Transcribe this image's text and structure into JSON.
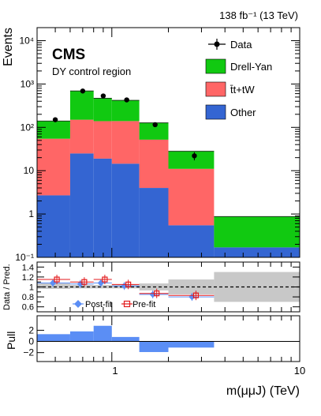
{
  "chart_data": {
    "type": "bar",
    "lumi_label": "138 fb⁻¹ (13 TeV)",
    "experiment": "CMS",
    "region": "DY control region",
    "xlabel": "m(μμJ) (TeV)",
    "x_scale": "log",
    "xlim": [
      0.4,
      10
    ],
    "x_ticks": [
      "1",
      "10"
    ],
    "bin_edges": [
      0.4,
      0.6,
      0.8,
      1.0,
      1.4,
      2.0,
      3.5,
      10
    ],
    "main": {
      "ylabel": "Events",
      "y_scale": "log",
      "ylim": [
        0.1,
        20000
      ],
      "y_ticks": [
        "10⁻¹",
        "1",
        "10",
        "10²",
        "10³",
        "10⁴"
      ],
      "series": [
        {
          "name": "Other",
          "color": "#3465d2",
          "values": [
            2.7,
            25,
            19,
            14.5,
            4.0,
            0.55,
            0.17
          ]
        },
        {
          "name": "t̄t+tW",
          "color": "#ff6666",
          "values": [
            52,
            125,
            120,
            125,
            48,
            10.5,
            0.0
          ]
        },
        {
          "name": "Drell-Yan",
          "color": "#11c911",
          "values": [
            85,
            540,
            330,
            280,
            75,
            17.0,
            0.7
          ]
        }
      ],
      "data": {
        "name": "Data",
        "x": [
          0.5,
          0.7,
          0.9,
          1.2,
          1.7,
          2.75
        ],
        "y": [
          150,
          690,
          530,
          430,
          115,
          22
        ]
      },
      "legend": {
        "placement": "top-right",
        "entries": [
          "Data",
          "Drell-Yan",
          "t̄t+tW",
          "Other"
        ]
      }
    },
    "ratio": {
      "ylabel": "Data / Pred.",
      "ylim": [
        0.5,
        1.5
      ],
      "y_ticks": [
        "0.6",
        "0.8",
        "1",
        "1.2",
        "1.4"
      ],
      "post_fit": {
        "name": "Post-fit",
        "color": "#5b8ef5",
        "x": [
          0.5,
          0.7,
          0.9,
          1.2,
          1.7,
          2.75
        ],
        "y": [
          1.08,
          1.06,
          1.08,
          1.02,
          0.85,
          0.8
        ]
      },
      "pre_fit": {
        "name": "Pre-fit",
        "color": "#e31a1c",
        "x": [
          0.5,
          0.7,
          0.9,
          1.2,
          1.7,
          2.75
        ],
        "y": [
          1.15,
          1.1,
          1.15,
          1.05,
          0.87,
          0.83
        ]
      },
      "uncertainty_band": [
        [
          0.4,
          0.6,
          0.96,
          1.07
        ],
        [
          0.6,
          0.8,
          0.97,
          1.04
        ],
        [
          0.8,
          1.0,
          0.97,
          1.04
        ],
        [
          1.0,
          1.4,
          0.97,
          1.04
        ],
        [
          1.4,
          2.0,
          0.93,
          1.07
        ],
        [
          2.0,
          3.5,
          0.85,
          1.15
        ],
        [
          3.5,
          10,
          0.7,
          1.3
        ]
      ]
    },
    "pull": {
      "ylabel": "Pull",
      "ylim": [
        -3.6,
        4.6
      ],
      "y_ticks": [
        "−2",
        "0",
        "2"
      ],
      "color": "#5b8ef5",
      "values": [
        1.3,
        1.8,
        2.8,
        0.8,
        -1.9,
        -1.1,
        0.0
      ]
    }
  }
}
